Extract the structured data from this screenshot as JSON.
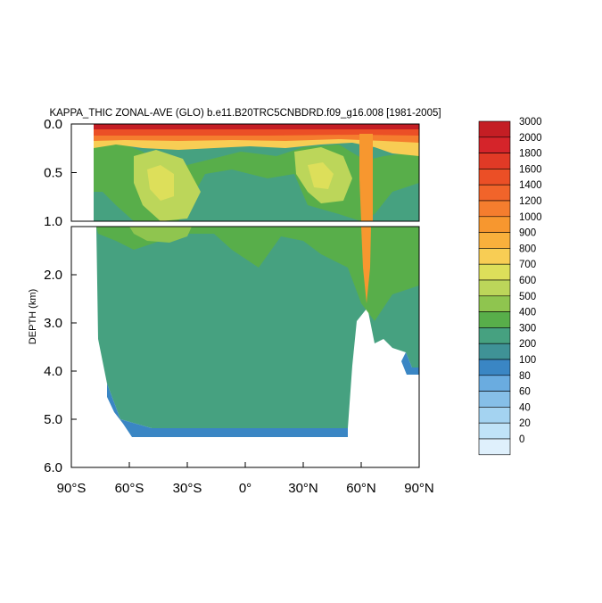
{
  "chart_data": {
    "type": "heatmap",
    "title": "KAPPA_THIC ZONAL-AVE (GLO) b.e11.B20TRC5CNBDRD.f09_g16.008 [1981-2005]",
    "ylabel": "DEPTH (km)",
    "xlabel": "",
    "x_ticks": [
      "90°S",
      "60°S",
      "30°S",
      "0°",
      "30°N",
      "60°N",
      "90°N"
    ],
    "x_tick_values": [
      -90,
      -60,
      -30,
      0,
      30,
      60,
      90
    ],
    "upper_y_ticks": [
      "0.0",
      "0.5",
      "1.0"
    ],
    "upper_y_tick_values": [
      0,
      0.5,
      1.0
    ],
    "lower_y_ticks": [
      "2.0",
      "3.0",
      "4.0",
      "5.0",
      "6.0"
    ],
    "lower_y_tick_values": [
      2,
      3,
      4,
      5,
      6
    ],
    "xlim": [
      -90,
      90
    ],
    "upper_ylim": [
      0,
      1.0
    ],
    "lower_ylim": [
      1.0,
      6.0
    ],
    "colorbar": {
      "labels": [
        "3000",
        "2000",
        "1800",
        "1600",
        "1400",
        "1200",
        "1000",
        "900",
        "800",
        "700",
        "600",
        "500",
        "400",
        "300",
        "200",
        "100",
        "80",
        "60",
        "40",
        "20",
        "0"
      ],
      "colors": [
        "#c41e24",
        "#d5242a",
        "#e13a26",
        "#eb4f26",
        "#f1642a",
        "#f57d2e",
        "#f7972f",
        "#f9b03c",
        "#f8cd54",
        "#dddf5a",
        "#bcd65a",
        "#8fc54f",
        "#58ae4a",
        "#46a180",
        "#3f9296",
        "#3a86c4",
        "#6aace0",
        "#86bfe8",
        "#a4d3f1",
        "#c0e3f8",
        "#dff0fc"
      ]
    },
    "grid": false,
    "legend": "right colorbar"
  }
}
